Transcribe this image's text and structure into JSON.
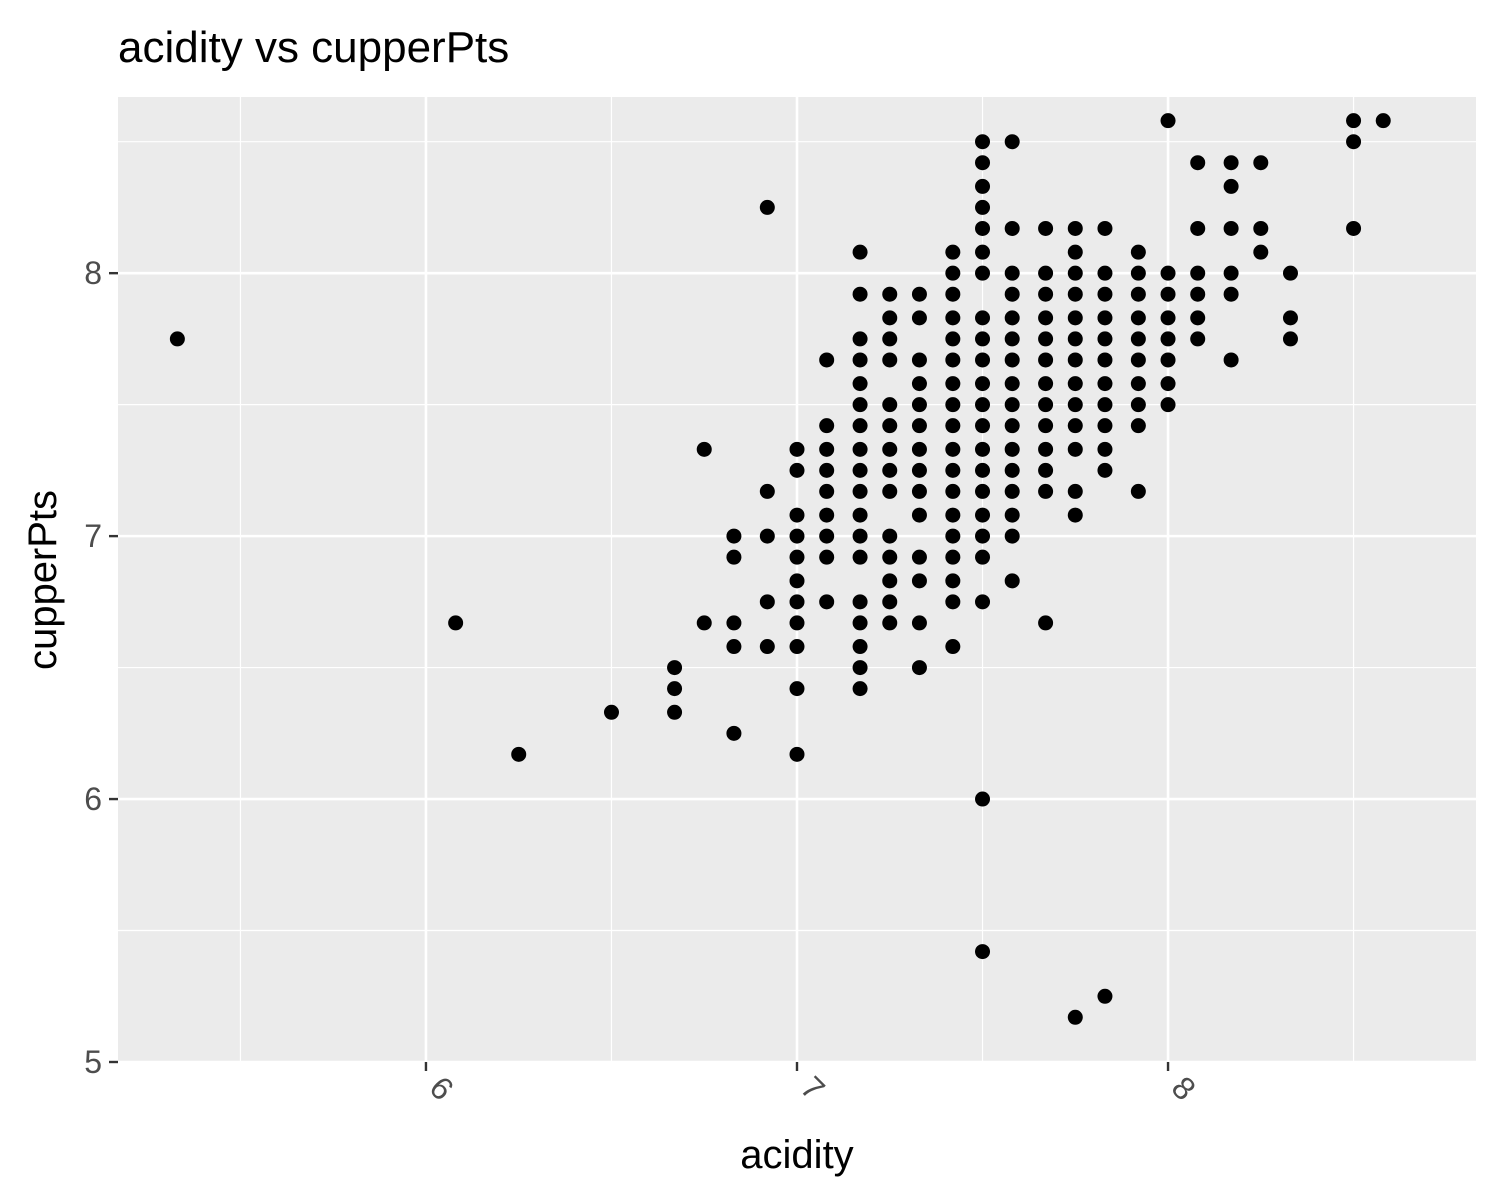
{
  "chart_data": {
    "type": "scatter",
    "title": "acidity vs cupperPts",
    "xlabel": "acidity",
    "ylabel": "cupperPts",
    "xlim": [
      5.17,
      8.83
    ],
    "ylim": [
      5.0,
      8.67
    ],
    "x_ticks": [
      6,
      7,
      8
    ],
    "y_ticks": [
      5,
      6,
      7,
      8
    ],
    "x_tick_labels": [
      "6",
      "7",
      "8"
    ],
    "y_tick_labels": [
      "5",
      "6",
      "7",
      "8"
    ],
    "x_tick_rotation_deg": 45,
    "grid": true,
    "legend": "none",
    "point_color": "#000000",
    "panel_background": "#ebebeb",
    "grid_color": "#ffffff",
    "points": [
      [
        5.33,
        7.75
      ],
      [
        6.08,
        6.67
      ],
      [
        6.25,
        6.17
      ],
      [
        6.5,
        6.33
      ],
      [
        6.67,
        6.5
      ],
      [
        6.67,
        6.42
      ],
      [
        6.67,
        6.33
      ],
      [
        6.75,
        7.33
      ],
      [
        6.75,
        6.67
      ],
      [
        6.83,
        7.0
      ],
      [
        6.83,
        6.92
      ],
      [
        6.83,
        6.67
      ],
      [
        6.83,
        6.58
      ],
      [
        6.83,
        6.25
      ],
      [
        6.92,
        8.25
      ],
      [
        6.92,
        7.17
      ],
      [
        6.92,
        7.0
      ],
      [
        6.92,
        6.75
      ],
      [
        6.92,
        6.58
      ],
      [
        7.0,
        7.33
      ],
      [
        7.0,
        7.25
      ],
      [
        7.0,
        7.08
      ],
      [
        7.0,
        7.0
      ],
      [
        7.0,
        6.92
      ],
      [
        7.0,
        6.83
      ],
      [
        7.0,
        6.75
      ],
      [
        7.0,
        6.67
      ],
      [
        7.0,
        6.58
      ],
      [
        7.0,
        6.42
      ],
      [
        7.0,
        6.17
      ],
      [
        7.08,
        7.67
      ],
      [
        7.08,
        7.42
      ],
      [
        7.08,
        7.33
      ],
      [
        7.08,
        7.25
      ],
      [
        7.08,
        7.17
      ],
      [
        7.08,
        7.08
      ],
      [
        7.08,
        7.0
      ],
      [
        7.08,
        6.92
      ],
      [
        7.08,
        6.75
      ],
      [
        7.17,
        8.08
      ],
      [
        7.17,
        7.92
      ],
      [
        7.17,
        7.75
      ],
      [
        7.17,
        7.67
      ],
      [
        7.17,
        7.58
      ],
      [
        7.17,
        7.5
      ],
      [
        7.17,
        7.42
      ],
      [
        7.17,
        7.33
      ],
      [
        7.17,
        7.25
      ],
      [
        7.17,
        7.17
      ],
      [
        7.17,
        7.08
      ],
      [
        7.17,
        7.0
      ],
      [
        7.17,
        6.92
      ],
      [
        7.17,
        6.75
      ],
      [
        7.17,
        6.67
      ],
      [
        7.17,
        6.58
      ],
      [
        7.17,
        6.5
      ],
      [
        7.17,
        6.42
      ],
      [
        7.25,
        7.92
      ],
      [
        7.25,
        7.83
      ],
      [
        7.25,
        7.75
      ],
      [
        7.25,
        7.67
      ],
      [
        7.25,
        7.5
      ],
      [
        7.25,
        7.42
      ],
      [
        7.25,
        7.33
      ],
      [
        7.25,
        7.25
      ],
      [
        7.25,
        7.17
      ],
      [
        7.25,
        7.0
      ],
      [
        7.25,
        6.92
      ],
      [
        7.25,
        6.83
      ],
      [
        7.25,
        6.75
      ],
      [
        7.25,
        6.67
      ],
      [
        7.33,
        7.92
      ],
      [
        7.33,
        7.83
      ],
      [
        7.33,
        7.67
      ],
      [
        7.33,
        7.58
      ],
      [
        7.33,
        7.5
      ],
      [
        7.33,
        7.42
      ],
      [
        7.33,
        7.33
      ],
      [
        7.33,
        7.25
      ],
      [
        7.33,
        7.17
      ],
      [
        7.33,
        7.08
      ],
      [
        7.33,
        6.92
      ],
      [
        7.33,
        6.83
      ],
      [
        7.33,
        6.67
      ],
      [
        7.33,
        6.5
      ],
      [
        7.42,
        8.08
      ],
      [
        7.42,
        8.0
      ],
      [
        7.42,
        7.92
      ],
      [
        7.42,
        7.83
      ],
      [
        7.42,
        7.75
      ],
      [
        7.42,
        7.67
      ],
      [
        7.42,
        7.58
      ],
      [
        7.42,
        7.5
      ],
      [
        7.42,
        7.42
      ],
      [
        7.42,
        7.33
      ],
      [
        7.42,
        7.25
      ],
      [
        7.42,
        7.17
      ],
      [
        7.42,
        7.08
      ],
      [
        7.42,
        7.0
      ],
      [
        7.42,
        6.92
      ],
      [
        7.42,
        6.83
      ],
      [
        7.42,
        6.75
      ],
      [
        7.42,
        6.58
      ],
      [
        7.5,
        8.5
      ],
      [
        7.5,
        8.42
      ],
      [
        7.5,
        8.33
      ],
      [
        7.5,
        8.25
      ],
      [
        7.5,
        8.17
      ],
      [
        7.5,
        8.08
      ],
      [
        7.5,
        8.0
      ],
      [
        7.5,
        7.83
      ],
      [
        7.5,
        7.75
      ],
      [
        7.5,
        7.67
      ],
      [
        7.5,
        7.58
      ],
      [
        7.5,
        7.5
      ],
      [
        7.5,
        7.42
      ],
      [
        7.5,
        7.33
      ],
      [
        7.5,
        7.25
      ],
      [
        7.5,
        7.17
      ],
      [
        7.5,
        7.08
      ],
      [
        7.5,
        7.0
      ],
      [
        7.5,
        6.92
      ],
      [
        7.5,
        6.75
      ],
      [
        7.5,
        6.0
      ],
      [
        7.5,
        5.42
      ],
      [
        7.58,
        8.5
      ],
      [
        7.58,
        8.17
      ],
      [
        7.58,
        8.0
      ],
      [
        7.58,
        7.92
      ],
      [
        7.58,
        7.83
      ],
      [
        7.58,
        7.75
      ],
      [
        7.58,
        7.67
      ],
      [
        7.58,
        7.58
      ],
      [
        7.58,
        7.5
      ],
      [
        7.58,
        7.42
      ],
      [
        7.58,
        7.33
      ],
      [
        7.58,
        7.25
      ],
      [
        7.58,
        7.17
      ],
      [
        7.58,
        7.08
      ],
      [
        7.58,
        7.0
      ],
      [
        7.58,
        6.83
      ],
      [
        7.67,
        8.17
      ],
      [
        7.67,
        8.0
      ],
      [
        7.67,
        7.92
      ],
      [
        7.67,
        7.83
      ],
      [
        7.67,
        7.75
      ],
      [
        7.67,
        7.67
      ],
      [
        7.67,
        7.58
      ],
      [
        7.67,
        7.5
      ],
      [
        7.67,
        7.42
      ],
      [
        7.67,
        7.33
      ],
      [
        7.67,
        7.25
      ],
      [
        7.67,
        7.17
      ],
      [
        7.67,
        6.67
      ],
      [
        7.75,
        8.17
      ],
      [
        7.75,
        8.08
      ],
      [
        7.75,
        8.0
      ],
      [
        7.75,
        7.92
      ],
      [
        7.75,
        7.83
      ],
      [
        7.75,
        7.75
      ],
      [
        7.75,
        7.67
      ],
      [
        7.75,
        7.58
      ],
      [
        7.75,
        7.5
      ],
      [
        7.75,
        7.42
      ],
      [
        7.75,
        7.33
      ],
      [
        7.75,
        7.17
      ],
      [
        7.75,
        7.08
      ],
      [
        7.75,
        5.17
      ],
      [
        7.83,
        8.17
      ],
      [
        7.83,
        8.0
      ],
      [
        7.83,
        7.92
      ],
      [
        7.83,
        7.83
      ],
      [
        7.83,
        7.75
      ],
      [
        7.83,
        7.67
      ],
      [
        7.83,
        7.58
      ],
      [
        7.83,
        7.5
      ],
      [
        7.83,
        7.42
      ],
      [
        7.83,
        7.33
      ],
      [
        7.83,
        7.25
      ],
      [
        7.83,
        5.25
      ],
      [
        7.92,
        8.08
      ],
      [
        7.92,
        8.0
      ],
      [
        7.92,
        7.92
      ],
      [
        7.92,
        7.83
      ],
      [
        7.92,
        7.75
      ],
      [
        7.92,
        7.67
      ],
      [
        7.92,
        7.58
      ],
      [
        7.92,
        7.5
      ],
      [
        7.92,
        7.42
      ],
      [
        7.92,
        7.17
      ],
      [
        8.0,
        8.58
      ],
      [
        8.0,
        8.0
      ],
      [
        8.0,
        7.92
      ],
      [
        8.0,
        7.83
      ],
      [
        8.0,
        7.75
      ],
      [
        8.0,
        7.67
      ],
      [
        8.0,
        7.58
      ],
      [
        8.0,
        7.5
      ],
      [
        8.08,
        8.42
      ],
      [
        8.08,
        8.17
      ],
      [
        8.08,
        8.0
      ],
      [
        8.08,
        7.92
      ],
      [
        8.08,
        7.83
      ],
      [
        8.08,
        7.75
      ],
      [
        8.17,
        8.42
      ],
      [
        8.17,
        8.33
      ],
      [
        8.17,
        8.17
      ],
      [
        8.17,
        8.0
      ],
      [
        8.17,
        7.92
      ],
      [
        8.17,
        7.67
      ],
      [
        8.25,
        8.42
      ],
      [
        8.25,
        8.17
      ],
      [
        8.25,
        8.08
      ],
      [
        8.33,
        8.0
      ],
      [
        8.33,
        7.83
      ],
      [
        8.33,
        7.75
      ],
      [
        8.5,
        8.58
      ],
      [
        8.5,
        8.5
      ],
      [
        8.5,
        8.17
      ],
      [
        8.58,
        8.58
      ]
    ]
  }
}
